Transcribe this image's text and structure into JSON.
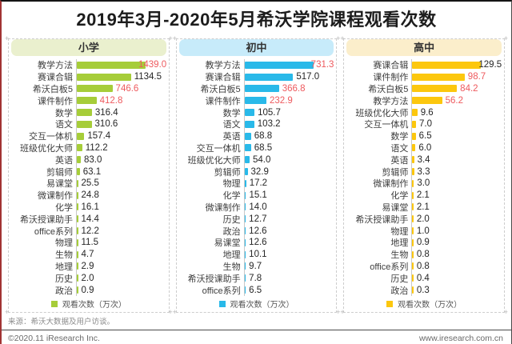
{
  "title": "2019年3月-2020年5月希沃学院课程观看次数",
  "footer": {
    "source": "来源：希沃大数据及用户访谈。",
    "copyright": "©2020.11  iResearch Inc.",
    "website": "www.iresearch.com.cn"
  },
  "colors": {
    "primary_green": "#a6cd39",
    "junior_cyan": "#29b9e9",
    "senior_yellow": "#fcc70e",
    "highlight_red": "#ee5a5e"
  },
  "chart_data": [
    {
      "type": "bar",
      "orientation": "horizontal",
      "title": "小学",
      "header_bg": "#eaf0ce",
      "bar_color": "#a6cd39",
      "legend": "观看次数（万次）",
      "xlim": [
        0,
        1439
      ],
      "categories": [
        "教学方法",
        "赛课合辑",
        "希沃白板5",
        "课件制作",
        "数学",
        "语文",
        "交互一体机",
        "班级优化大师",
        "英语",
        "剪辑师",
        "易课堂",
        "微课制作",
        "化学",
        "希沃授课助手",
        "office系列",
        "物理",
        "生物",
        "地理",
        "历史",
        "政治"
      ],
      "values": [
        1439.0,
        1134.5,
        746.6,
        412.8,
        316.4,
        310.6,
        157.4,
        112.2,
        83.0,
        63.1,
        25.5,
        24.8,
        16.1,
        14.4,
        12.2,
        11.5,
        4.7,
        2.9,
        2.0,
        0.9
      ],
      "value_labels": [
        "1439.0",
        "1134.5",
        "746.6",
        "412.8",
        "316.4",
        "310.6",
        "157.4",
        "112.2",
        "83.0",
        "63.1",
        "25.5",
        "24.8",
        "16.1",
        "14.4",
        "12.2",
        "11.5",
        "4.7",
        "2.9",
        "2.0",
        "0.9"
      ],
      "highlighted": [
        true,
        false,
        true,
        true,
        false,
        false,
        false,
        false,
        false,
        false,
        false,
        false,
        false,
        false,
        false,
        false,
        false,
        false,
        false,
        false
      ]
    },
    {
      "type": "bar",
      "orientation": "horizontal",
      "title": "初中",
      "header_bg": "#c7ebfa",
      "bar_color": "#29b9e9",
      "legend": "观看次数（万次）",
      "xlim": [
        0,
        731.3
      ],
      "categories": [
        "教学方法",
        "赛课合辑",
        "希沃白板5",
        "课件制作",
        "数学",
        "语文",
        "英语",
        "交互一体机",
        "班级优化大师",
        "剪辑师",
        "物理",
        "化学",
        "微课制作",
        "历史",
        "政治",
        "易课堂",
        "地理",
        "生物",
        "希沃授课助手",
        "office系列"
      ],
      "values": [
        731.3,
        517.0,
        366.8,
        232.9,
        105.7,
        103.2,
        68.8,
        68.5,
        54.0,
        32.9,
        17.2,
        15.1,
        14.0,
        12.7,
        12.6,
        12.6,
        10.1,
        9.7,
        7.8,
        6.5
      ],
      "value_labels": [
        "731.3",
        "517.0",
        "366.8",
        "232.9",
        "105.7",
        "103.2",
        "68.8",
        "68.5",
        "54.0",
        "32.9",
        "17.2",
        "15.1",
        "14.0",
        "12.7",
        "12.6",
        "12.6",
        "10.1",
        "9.7",
        "7.8",
        "6.5"
      ],
      "highlighted": [
        true,
        false,
        true,
        true,
        false,
        false,
        false,
        false,
        false,
        false,
        false,
        false,
        false,
        false,
        false,
        false,
        false,
        false,
        false,
        false
      ]
    },
    {
      "type": "bar",
      "orientation": "horizontal",
      "title": "高中",
      "header_bg": "#fbeecb",
      "bar_color": "#fcc70e",
      "legend": "观看次数（万次）",
      "xlim": [
        0,
        129.5
      ],
      "categories": [
        "赛课合辑",
        "课件制作",
        "希沃白板5",
        "教学方法",
        "班级优化大师",
        "交互一体机",
        "数学",
        "语文",
        "英语",
        "剪辑师",
        "微课制作",
        "化学",
        "易课堂",
        "希沃授课助手",
        "物理",
        "地理",
        "生物",
        "office系列",
        "历史",
        "政治"
      ],
      "values": [
        129.5,
        98.7,
        84.2,
        56.2,
        9.6,
        7.0,
        6.5,
        6.0,
        3.4,
        3.3,
        3.0,
        2.1,
        2.1,
        2.0,
        1.0,
        0.9,
        0.8,
        0.8,
        0.4,
        0.3
      ],
      "value_labels": [
        "129.5",
        "98.7",
        "84.2",
        "56.2",
        "9.6",
        "7.0",
        "6.5",
        "6.0",
        "3.4",
        "3.3",
        "3.0",
        "2.1",
        "2.1",
        "2.0",
        "1.0",
        "0.9",
        "0.8",
        "0.8",
        "0.4",
        "0.3"
      ],
      "highlighted": [
        false,
        true,
        true,
        true,
        false,
        false,
        false,
        false,
        false,
        false,
        false,
        false,
        false,
        false,
        false,
        false,
        false,
        false,
        false,
        false
      ]
    }
  ]
}
